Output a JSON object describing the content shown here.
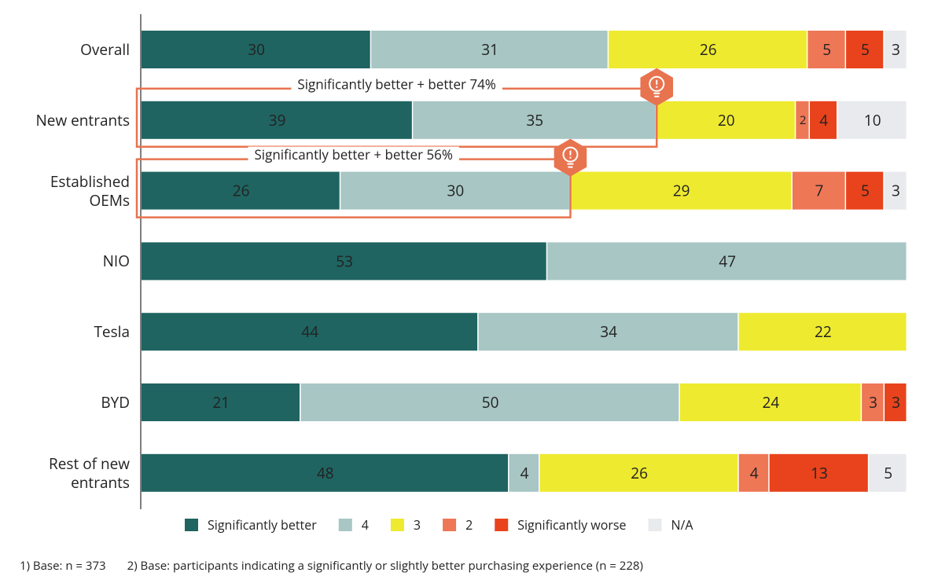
{
  "chart_data": {
    "type": "stacked-bar-horizontal",
    "categories": [
      "Overall",
      "New entrants",
      "Established OEMs",
      "NIO",
      "Tesla",
      "BYD",
      "Rest of new entrants"
    ],
    "series": [
      {
        "name": "Significantly better",
        "color": "#1f6461",
        "values": [
          30,
          39,
          26,
          53,
          44,
          21,
          48
        ]
      },
      {
        "name": "4",
        "color": "#a7c6c4",
        "values": [
          31,
          35,
          30,
          47,
          34,
          50,
          4
        ]
      },
      {
        "name": "3",
        "color": "#eeea2f",
        "values": [
          26,
          20,
          29,
          null,
          22,
          24,
          26
        ]
      },
      {
        "name": "2",
        "color": "#ee7756",
        "values": [
          5,
          2,
          7,
          null,
          null,
          3,
          4
        ]
      },
      {
        "name": "Significantly worse",
        "color": "#e8431c",
        "values": [
          5,
          4,
          5,
          null,
          null,
          3,
          13
        ]
      },
      {
        "name": "N/A",
        "color": "#e8eaed",
        "values": [
          3,
          10,
          3,
          null,
          null,
          null,
          5
        ]
      }
    ],
    "annotations": [
      "Significantly better + better 74%",
      "Significantly better + better 56%"
    ],
    "footnotes": [
      "1) Base: n = 373",
      "2) Base: participants indicating a significantly or slightly better purchasing experience (n = 228)"
    ],
    "legend": "bottom"
  }
}
